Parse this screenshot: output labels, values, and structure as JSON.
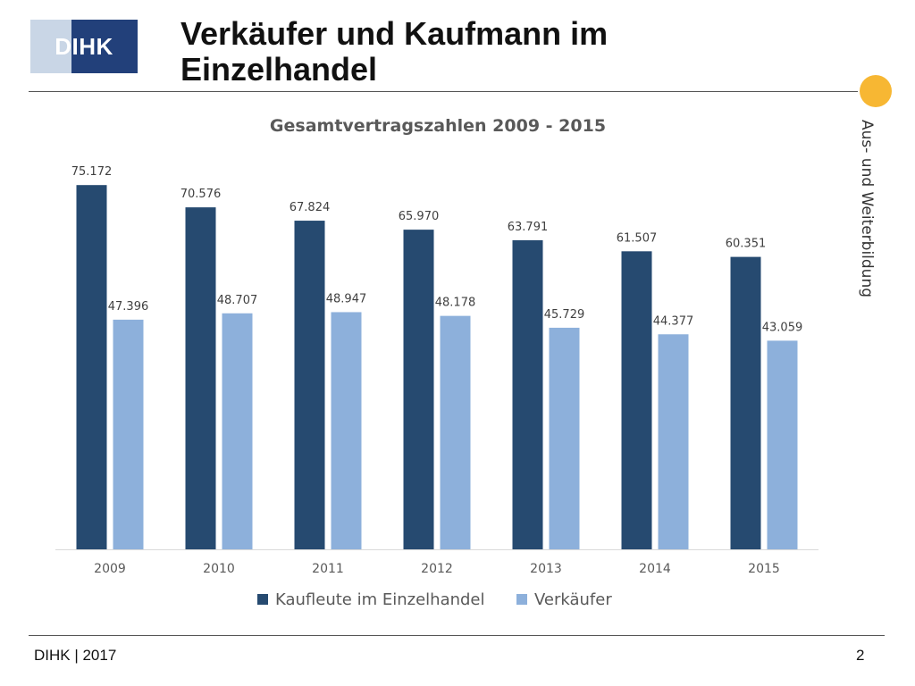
{
  "logo": {
    "text": "DIHK"
  },
  "slide": {
    "title_line1": "Verkäufer und Kaufmann im",
    "title_line2": "Einzelhandel",
    "side_label": "Aus- und Weiterbildung"
  },
  "footer": {
    "left": "DIHK | 2017",
    "page": "2"
  },
  "colors": {
    "accent": "#f7b733",
    "series1": "#264a70",
    "series2": "#8db0db",
    "logo_dark": "#22407a",
    "logo_light": "#c9d6e6"
  },
  "chart_data": {
    "type": "bar",
    "title": "Gesamtvertragszahlen 2009 - 2015",
    "categories": [
      "2009",
      "2010",
      "2011",
      "2012",
      "2013",
      "2014",
      "2015"
    ],
    "series": [
      {
        "name": "Kaufleute im Einzelhandel",
        "values": [
          75172,
          70576,
          67824,
          65970,
          63791,
          61507,
          60351
        ],
        "labels": [
          "75.172",
          "70.576",
          "67.824",
          "65.970",
          "63.791",
          "61.507",
          "60.351"
        ]
      },
      {
        "name": "Verkäufer",
        "values": [
          47396,
          48707,
          48947,
          48178,
          45729,
          44377,
          43059
        ],
        "labels": [
          "47.396",
          "48.707",
          "48.947",
          "48.178",
          "45.729",
          "44.377",
          "43.059"
        ]
      }
    ],
    "ylim": [
      0,
      80000
    ],
    "grid": false,
    "legend": "bottom"
  }
}
